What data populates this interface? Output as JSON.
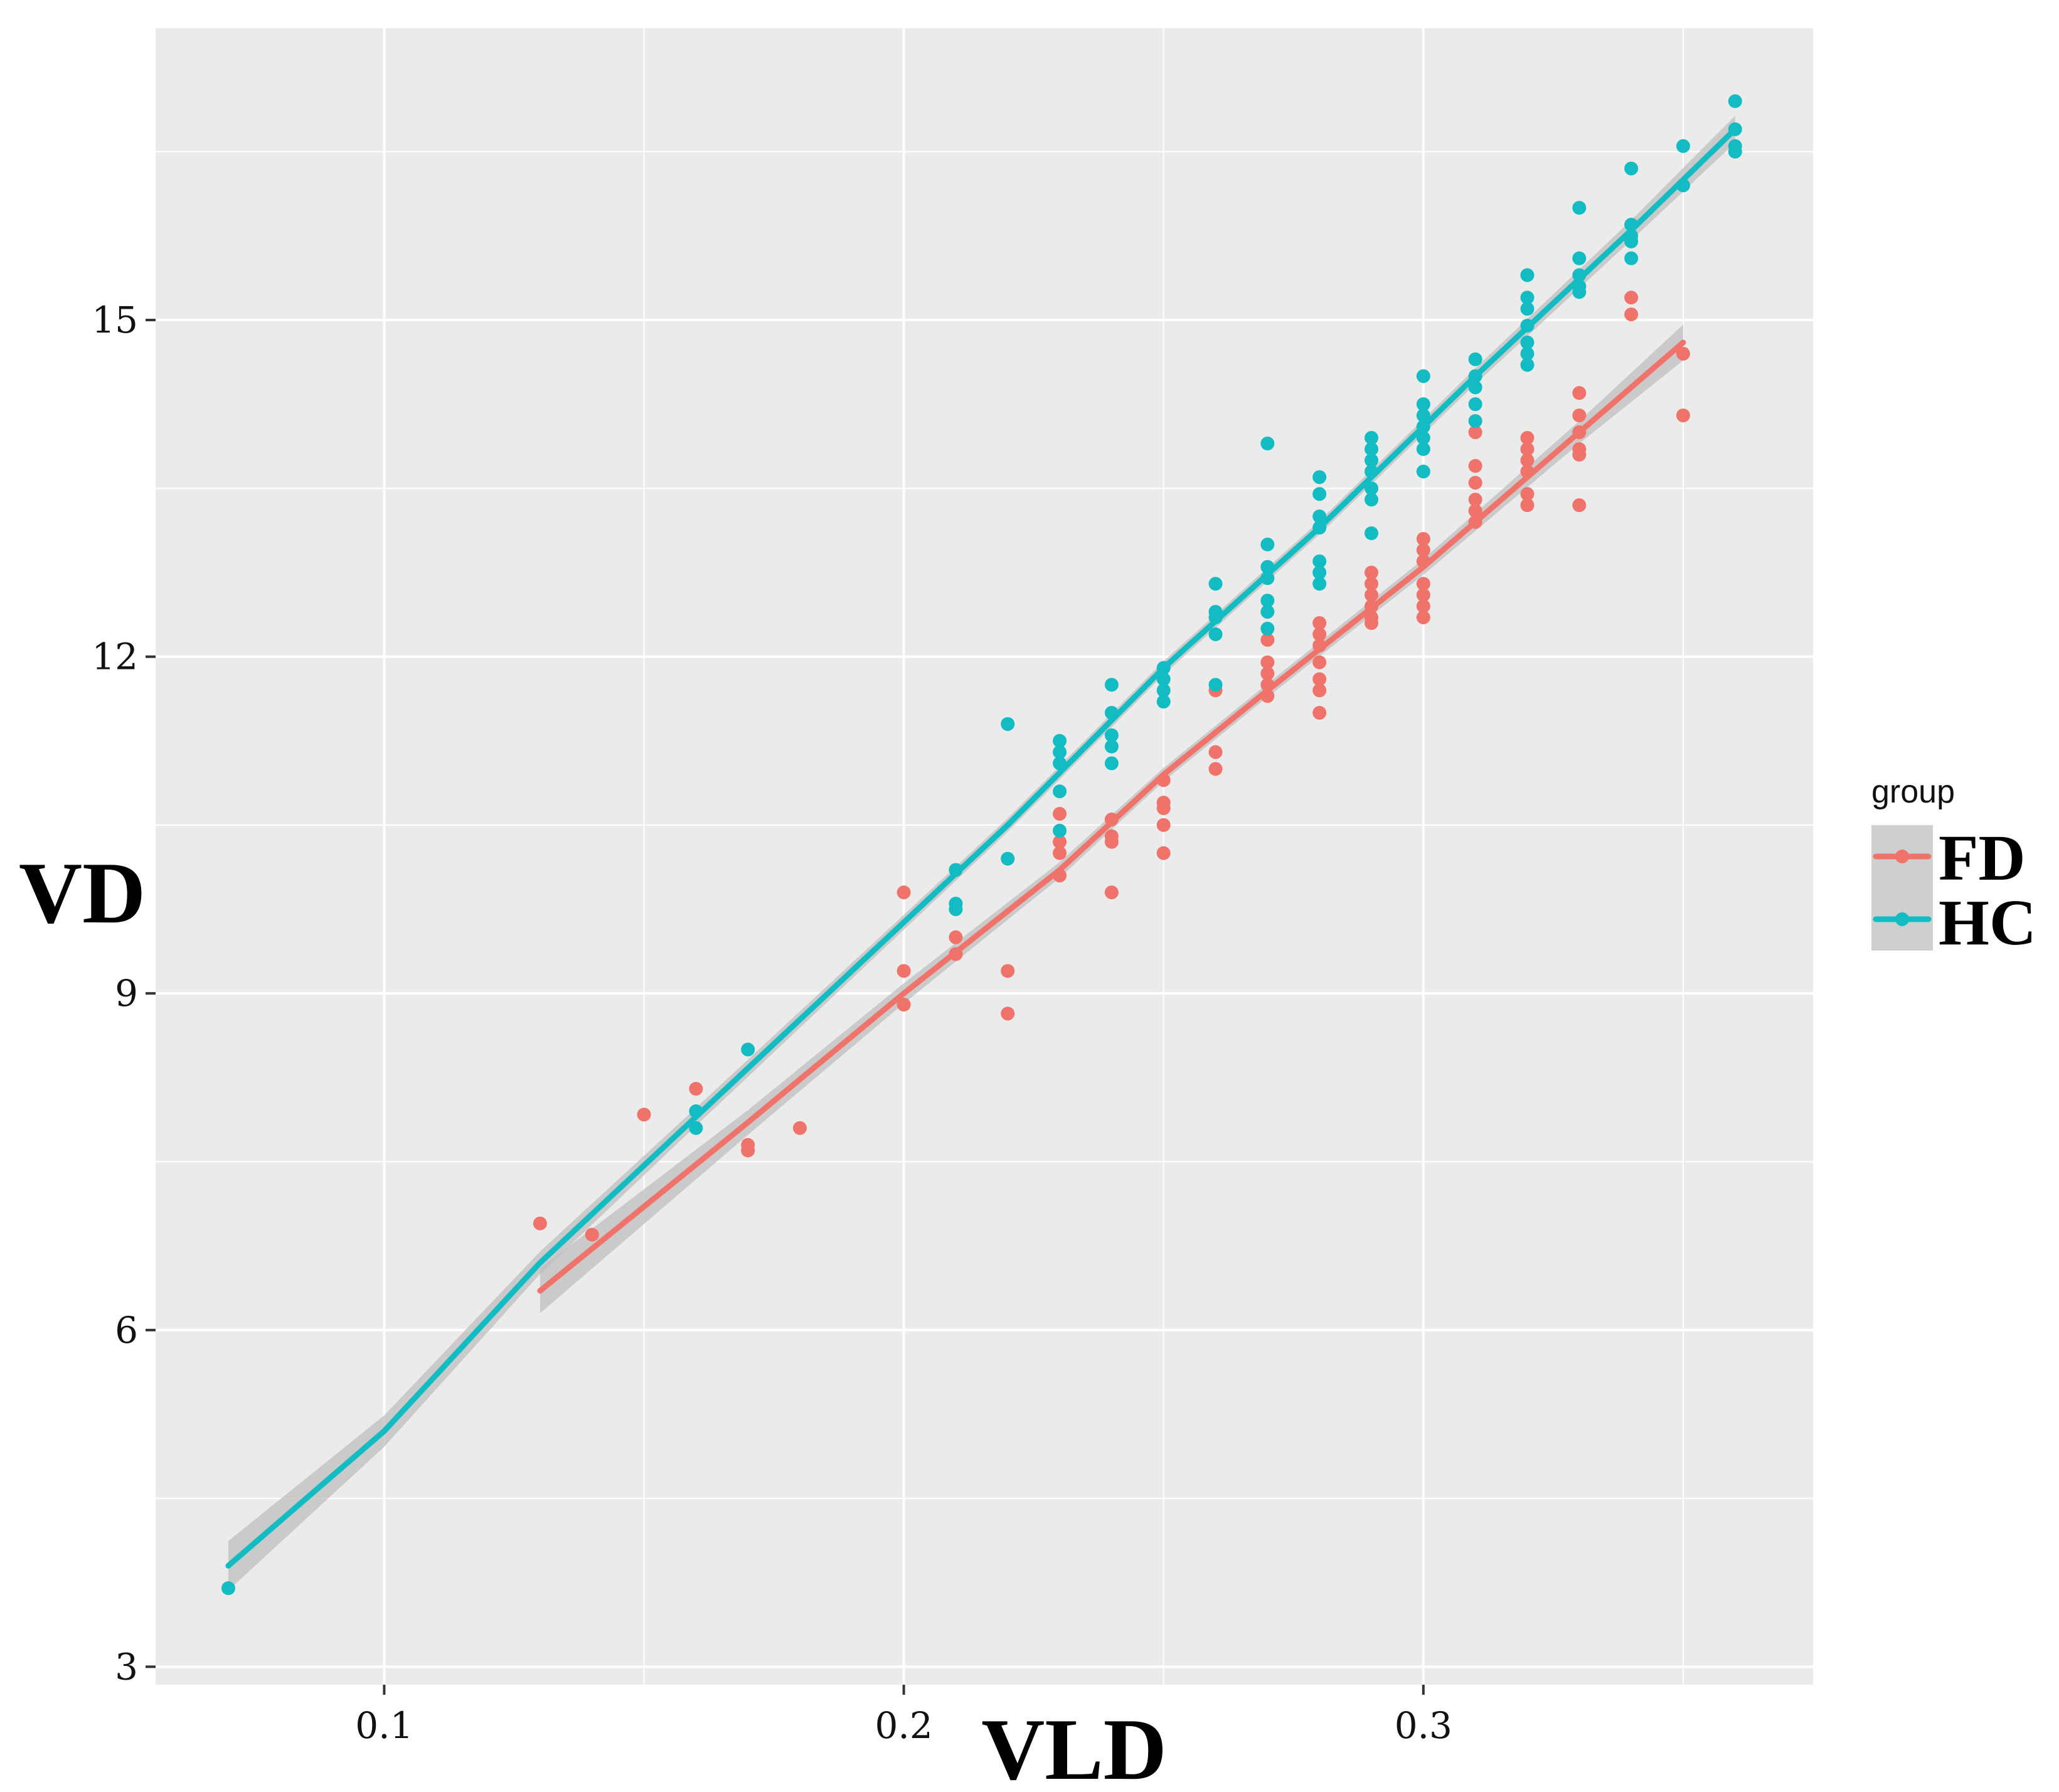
{
  "chart_data": {
    "type": "scatter",
    "title": "",
    "xlabel": "VLD",
    "ylabel": "VD",
    "xlim": [
      0.056,
      0.375
    ],
    "ylim": [
      2.84,
      17.6
    ],
    "x_ticks": [
      0.1,
      0.2,
      0.3
    ],
    "x_tick_labels": [
      "0.1",
      "0.2",
      "0.3"
    ],
    "y_ticks": [
      3,
      6,
      9,
      12,
      15
    ],
    "y_tick_labels": [
      "3",
      "6",
      "9",
      "12",
      "15"
    ],
    "grid": true,
    "legend": {
      "title": "group",
      "position": "right"
    },
    "colors": {
      "panel": "#ebebeb",
      "grid": "#ffffff",
      "band": "#bdbdbd",
      "FD": "#f0736b",
      "HC": "#13bcc2"
    },
    "series": [
      {
        "name": "FD",
        "color": "#f0736b",
        "trend": {
          "x": [
            0.13,
            0.17,
            0.2,
            0.23,
            0.25,
            0.27,
            0.3,
            0.33,
            0.35
          ],
          "y": [
            6.35,
            7.85,
            9.0,
            10.1,
            10.95,
            11.7,
            12.8,
            14.0,
            14.8
          ],
          "band": [
            0.2,
            0.11,
            0.09,
            0.07,
            0.06,
            0.06,
            0.07,
            0.1,
            0.16
          ]
        },
        "points": [
          [
            0.13,
            6.95
          ],
          [
            0.14,
            6.85
          ],
          [
            0.15,
            7.92
          ],
          [
            0.16,
            8.15
          ],
          [
            0.17,
            7.6
          ],
          [
            0.17,
            7.65
          ],
          [
            0.18,
            7.8
          ],
          [
            0.2,
            9.9
          ],
          [
            0.2,
            9.2
          ],
          [
            0.2,
            8.9
          ],
          [
            0.21,
            9.5
          ],
          [
            0.21,
            9.35
          ],
          [
            0.22,
            9.2
          ],
          [
            0.22,
            8.82
          ],
          [
            0.23,
            10.6
          ],
          [
            0.23,
            10.35
          ],
          [
            0.23,
            10.25
          ],
          [
            0.23,
            10.05
          ],
          [
            0.24,
            10.55
          ],
          [
            0.24,
            10.4
          ],
          [
            0.24,
            10.35
          ],
          [
            0.24,
            9.9
          ],
          [
            0.25,
            10.9
          ],
          [
            0.25,
            10.7
          ],
          [
            0.25,
            10.65
          ],
          [
            0.25,
            10.5
          ],
          [
            0.25,
            10.25
          ],
          [
            0.26,
            11.7
          ],
          [
            0.26,
            11.15
          ],
          [
            0.26,
            11.0
          ],
          [
            0.27,
            12.15
          ],
          [
            0.27,
            11.95
          ],
          [
            0.27,
            11.85
          ],
          [
            0.27,
            11.75
          ],
          [
            0.27,
            11.65
          ],
          [
            0.28,
            12.3
          ],
          [
            0.28,
            12.2
          ],
          [
            0.28,
            12.1
          ],
          [
            0.28,
            11.95
          ],
          [
            0.28,
            11.8
          ],
          [
            0.28,
            11.7
          ],
          [
            0.28,
            11.5
          ],
          [
            0.29,
            12.75
          ],
          [
            0.29,
            12.65
          ],
          [
            0.29,
            12.55
          ],
          [
            0.29,
            12.45
          ],
          [
            0.29,
            12.35
          ],
          [
            0.29,
            12.3
          ],
          [
            0.3,
            13.05
          ],
          [
            0.3,
            12.95
          ],
          [
            0.3,
            12.85
          ],
          [
            0.3,
            12.65
          ],
          [
            0.3,
            12.55
          ],
          [
            0.3,
            12.45
          ],
          [
            0.3,
            12.35
          ],
          [
            0.31,
            14.0
          ],
          [
            0.31,
            13.7
          ],
          [
            0.31,
            13.55
          ],
          [
            0.31,
            13.4
          ],
          [
            0.31,
            13.3
          ],
          [
            0.31,
            13.2
          ],
          [
            0.32,
            13.95
          ],
          [
            0.32,
            13.85
          ],
          [
            0.32,
            13.75
          ],
          [
            0.32,
            13.65
          ],
          [
            0.32,
            13.45
          ],
          [
            0.32,
            13.35
          ],
          [
            0.33,
            14.35
          ],
          [
            0.33,
            14.15
          ],
          [
            0.33,
            14.0
          ],
          [
            0.33,
            13.85
          ],
          [
            0.33,
            13.8
          ],
          [
            0.33,
            13.35
          ],
          [
            0.34,
            15.2
          ],
          [
            0.34,
            15.05
          ],
          [
            0.35,
            14.7
          ],
          [
            0.35,
            14.15
          ]
        ]
      },
      {
        "name": "HC",
        "color": "#13bcc2",
        "trend": {
          "x": [
            0.07,
            0.1,
            0.13,
            0.16,
            0.19,
            0.22,
            0.25,
            0.28,
            0.31,
            0.34,
            0.36
          ],
          "y": [
            3.9,
            5.1,
            6.6,
            7.9,
            9.2,
            10.5,
            11.9,
            13.15,
            14.5,
            15.8,
            16.7
          ],
          "band": [
            0.22,
            0.14,
            0.1,
            0.08,
            0.07,
            0.06,
            0.06,
            0.06,
            0.07,
            0.09,
            0.12
          ]
        },
        "points": [
          [
            0.07,
            3.7
          ],
          [
            0.16,
            7.95
          ],
          [
            0.16,
            7.8
          ],
          [
            0.17,
            8.5
          ],
          [
            0.21,
            10.1
          ],
          [
            0.21,
            9.8
          ],
          [
            0.21,
            9.75
          ],
          [
            0.22,
            11.4
          ],
          [
            0.22,
            10.2
          ],
          [
            0.23,
            11.25
          ],
          [
            0.23,
            11.15
          ],
          [
            0.23,
            11.05
          ],
          [
            0.23,
            10.8
          ],
          [
            0.23,
            10.45
          ],
          [
            0.24,
            11.75
          ],
          [
            0.24,
            11.5
          ],
          [
            0.24,
            11.3
          ],
          [
            0.24,
            11.2
          ],
          [
            0.24,
            11.05
          ],
          [
            0.25,
            11.9
          ],
          [
            0.25,
            11.8
          ],
          [
            0.25,
            11.7
          ],
          [
            0.25,
            11.6
          ],
          [
            0.26,
            12.65
          ],
          [
            0.26,
            12.4
          ],
          [
            0.26,
            12.35
          ],
          [
            0.26,
            12.2
          ],
          [
            0.26,
            11.75
          ],
          [
            0.27,
            13.9
          ],
          [
            0.27,
            13.0
          ],
          [
            0.27,
            12.8
          ],
          [
            0.27,
            12.7
          ],
          [
            0.27,
            12.5
          ],
          [
            0.27,
            12.4
          ],
          [
            0.27,
            12.25
          ],
          [
            0.28,
            13.6
          ],
          [
            0.28,
            13.45
          ],
          [
            0.28,
            13.25
          ],
          [
            0.28,
            13.15
          ],
          [
            0.28,
            12.85
          ],
          [
            0.28,
            12.75
          ],
          [
            0.28,
            12.65
          ],
          [
            0.29,
            13.95
          ],
          [
            0.29,
            13.85
          ],
          [
            0.29,
            13.75
          ],
          [
            0.29,
            13.65
          ],
          [
            0.29,
            13.5
          ],
          [
            0.29,
            13.4
          ],
          [
            0.29,
            13.1
          ],
          [
            0.3,
            14.5
          ],
          [
            0.3,
            14.25
          ],
          [
            0.3,
            14.15
          ],
          [
            0.3,
            14.05
          ],
          [
            0.3,
            13.95
          ],
          [
            0.3,
            13.85
          ],
          [
            0.3,
            13.65
          ],
          [
            0.31,
            14.65
          ],
          [
            0.31,
            14.5
          ],
          [
            0.31,
            14.4
          ],
          [
            0.31,
            14.25
          ],
          [
            0.31,
            14.1
          ],
          [
            0.32,
            15.4
          ],
          [
            0.32,
            15.2
          ],
          [
            0.32,
            15.1
          ],
          [
            0.32,
            14.95
          ],
          [
            0.32,
            14.8
          ],
          [
            0.32,
            14.7
          ],
          [
            0.32,
            14.6
          ],
          [
            0.33,
            16.0
          ],
          [
            0.33,
            15.55
          ],
          [
            0.33,
            15.4
          ],
          [
            0.33,
            15.3
          ],
          [
            0.33,
            15.25
          ],
          [
            0.34,
            16.35
          ],
          [
            0.34,
            15.85
          ],
          [
            0.34,
            15.75
          ],
          [
            0.34,
            15.7
          ],
          [
            0.34,
            15.55
          ],
          [
            0.35,
            16.55
          ],
          [
            0.35,
            16.2
          ],
          [
            0.36,
            16.95
          ],
          [
            0.36,
            16.7
          ],
          [
            0.36,
            16.55
          ],
          [
            0.36,
            16.5
          ]
        ]
      }
    ]
  }
}
